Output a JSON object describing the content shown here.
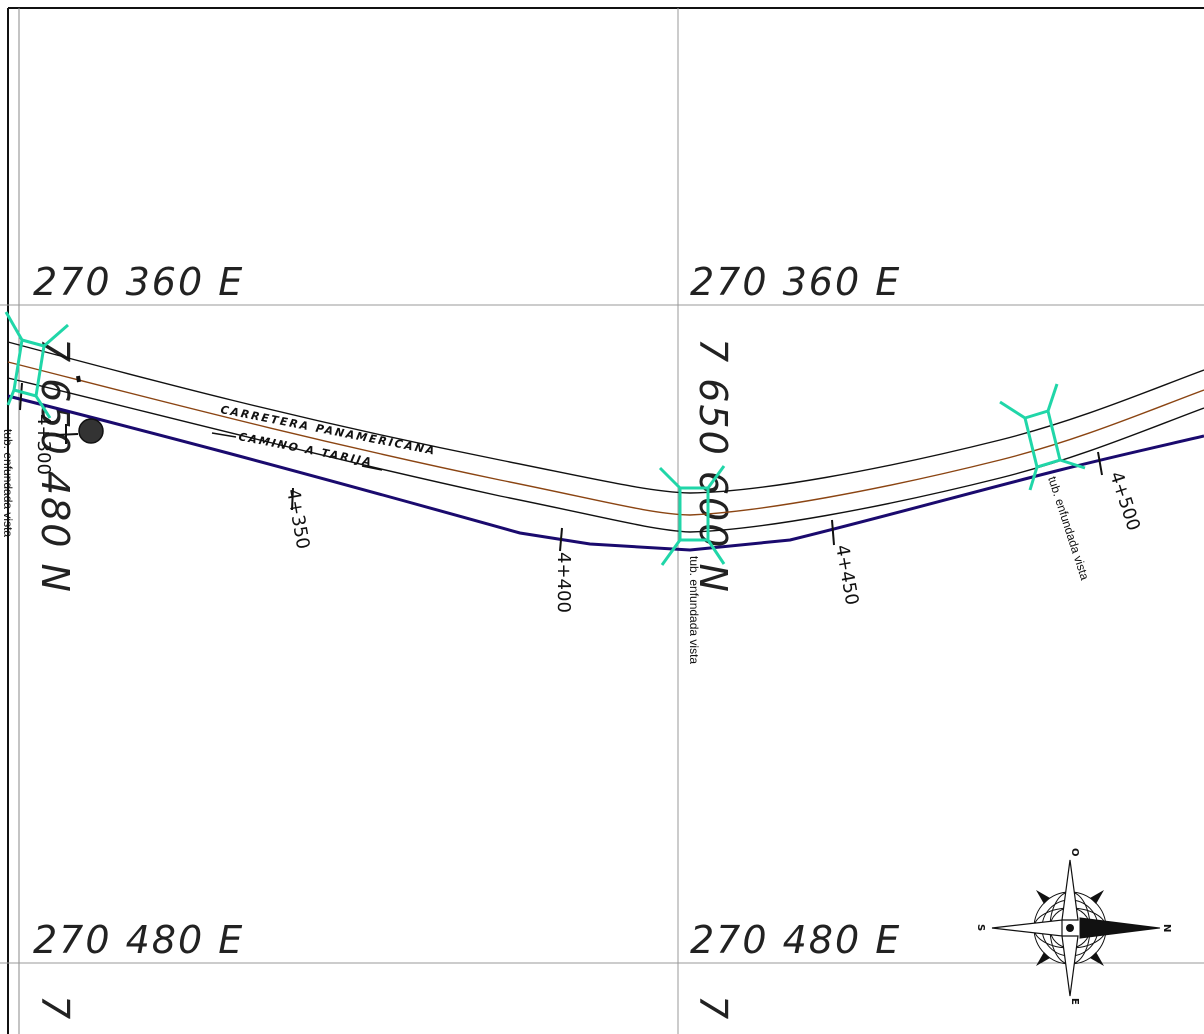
{
  "grid_labels": {
    "top_left_e": "270  360  E",
    "top_right_e": "270  360  E",
    "bottom_left_e": "270  480  E",
    "bottom_right_e": "270  480  E",
    "left_n": "7  650  480  N",
    "right_n": "7  650  600  N",
    "bottom_left_n_partial": "7",
    "bottom_right_n_partial": "7"
  },
  "road": {
    "name_upper": "CARRETERA  PANAMERICANA",
    "name_lower": "CAMINO  A  TARIJA",
    "colors": {
      "edge": "#111111",
      "centerline": "#8b4513",
      "boundary": "#1a0a6e",
      "culvert": "#20d6a8"
    }
  },
  "chainages": [
    "4+300",
    "4+350",
    "4+400",
    "4+450",
    "4+500"
  ],
  "culvert_notes": {
    "left": "tub. enfundada vista",
    "middle": "tub. enfundada vista",
    "right": "tub. enfundada vista"
  },
  "compass": {
    "north": "N",
    "south": "S",
    "east": "E",
    "west": "O"
  }
}
